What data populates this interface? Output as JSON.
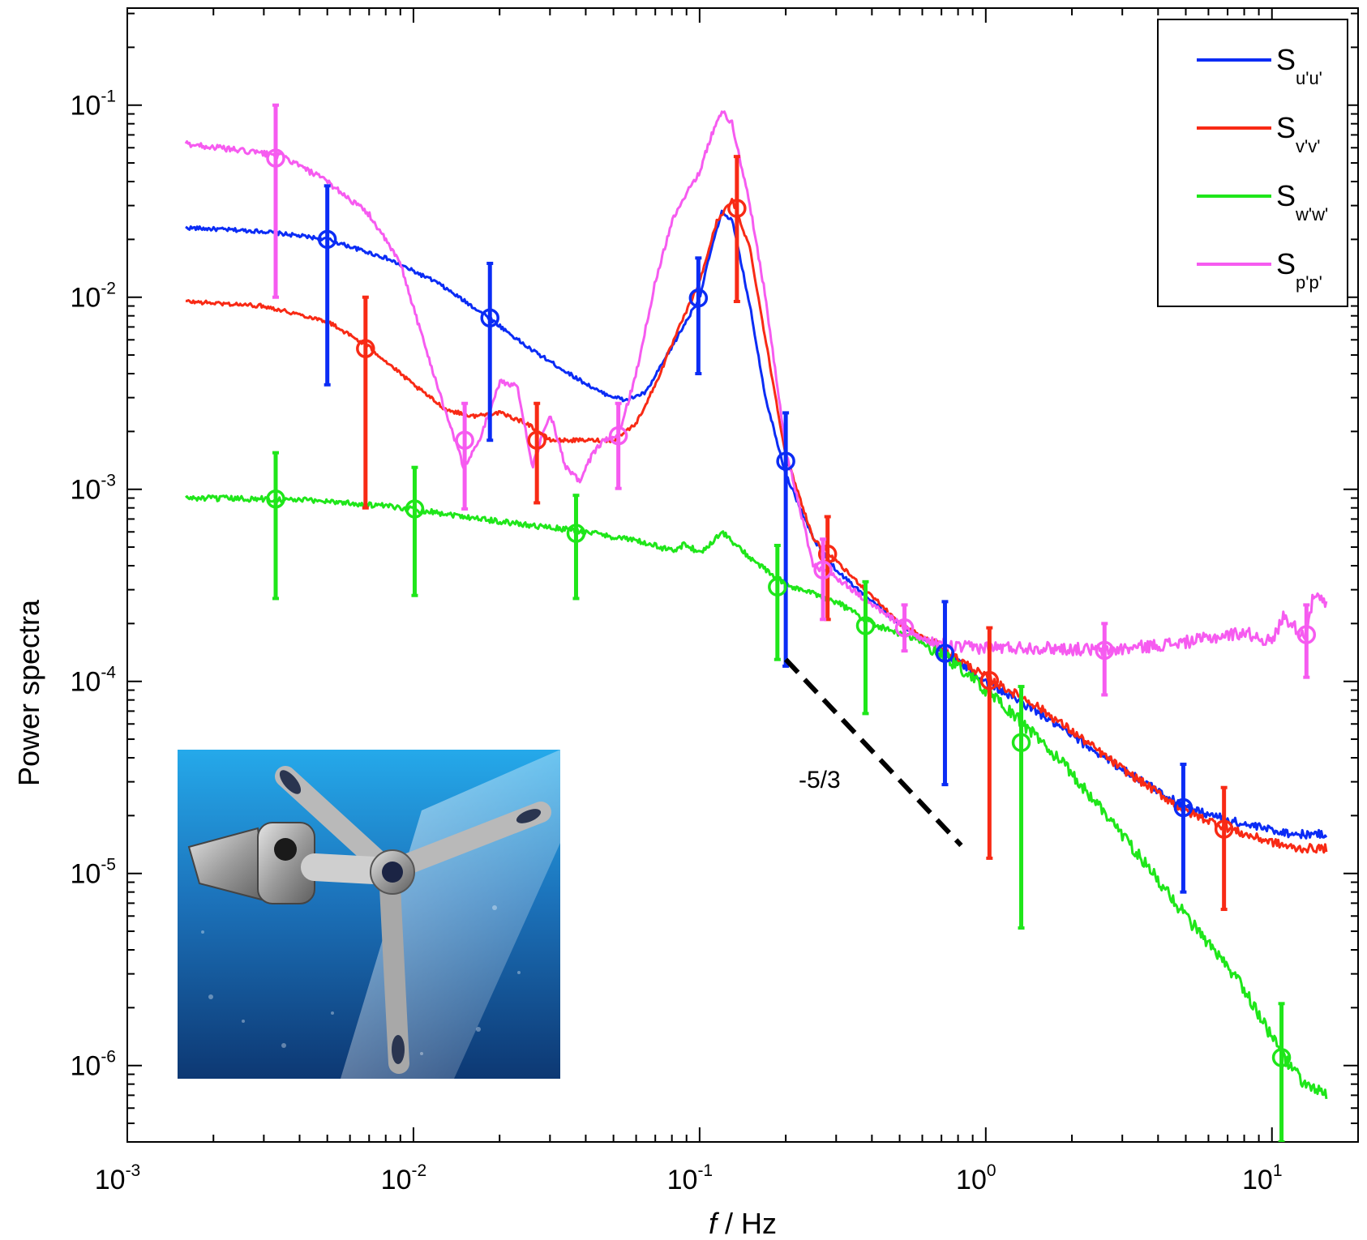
{
  "chart_data": {
    "type": "line",
    "xlabel_italic": "f",
    "xlabel_rest": " / Hz",
    "ylabel": "Power spectra",
    "x_scale": "log",
    "y_scale": "log",
    "xlim": [
      0.001,
      20
    ],
    "ylim": [
      4e-07,
      0.32
    ],
    "x_ticks": [
      {
        "value": 0.001,
        "base": "10",
        "exp": "-3"
      },
      {
        "value": 0.01,
        "base": "10",
        "exp": "-2"
      },
      {
        "value": 0.1,
        "base": "10",
        "exp": "-1"
      },
      {
        "value": 1,
        "base": "10",
        "exp": "0"
      },
      {
        "value": 10,
        "base": "10",
        "exp": "1"
      }
    ],
    "y_ticks": [
      {
        "value": 0.1,
        "base": "10",
        "exp": "-1"
      },
      {
        "value": 0.01,
        "base": "10",
        "exp": "-2"
      },
      {
        "value": 0.001,
        "base": "10",
        "exp": "-3"
      },
      {
        "value": 0.0001,
        "base": "10",
        "exp": "-4"
      },
      {
        "value": 1e-05,
        "base": "10",
        "exp": "-5"
      },
      {
        "value": 1e-06,
        "base": "10",
        "exp": "-6"
      }
    ],
    "legend_position": "top-right",
    "series": [
      {
        "name": "S",
        "sub": "u'u'",
        "color": "#0b2cf5",
        "noise": 0.02,
        "x": [
          0.0016,
          0.003,
          0.005,
          0.008,
          0.012,
          0.018,
          0.025,
          0.035,
          0.045,
          0.055,
          0.065,
          0.08,
          0.1,
          0.11,
          0.12,
          0.13,
          0.15,
          0.17,
          0.2,
          0.25,
          0.3,
          0.4,
          0.5,
          0.7,
          1.0,
          1.5,
          2,
          3,
          5,
          8,
          12,
          15.5
        ],
        "y": [
          0.023,
          0.022,
          0.02,
          0.016,
          0.012,
          0.008,
          0.0055,
          0.004,
          0.0032,
          0.0029,
          0.0032,
          0.0055,
          0.01,
          0.018,
          0.028,
          0.025,
          0.009,
          0.003,
          0.0012,
          0.00055,
          0.00038,
          0.00026,
          0.0002,
          0.000145,
          0.0001,
          7e-05,
          5.2e-05,
          3.5e-05,
          2.2e-05,
          1.8e-05,
          1.6e-05,
          1.6e-05
        ]
      },
      {
        "name": "S",
        "sub": "v'v'",
        "color": "#f82a15",
        "noise": 0.02,
        "x": [
          0.0016,
          0.003,
          0.005,
          0.007,
          0.01,
          0.013,
          0.016,
          0.02,
          0.025,
          0.03,
          0.04,
          0.05,
          0.06,
          0.07,
          0.085,
          0.1,
          0.115,
          0.13,
          0.15,
          0.17,
          0.2,
          0.25,
          0.3,
          0.4,
          0.5,
          0.7,
          1.0,
          1.5,
          2,
          3,
          5,
          8,
          12,
          15.5
        ],
        "y": [
          0.0095,
          0.009,
          0.0075,
          0.0055,
          0.0035,
          0.0026,
          0.0024,
          0.0025,
          0.0022,
          0.0018,
          0.0018,
          0.0018,
          0.0022,
          0.0035,
          0.007,
          0.012,
          0.025,
          0.032,
          0.018,
          0.006,
          0.0015,
          0.00055,
          0.00042,
          0.00028,
          0.0002,
          0.00015,
          0.000105,
          7.5e-05,
          5.5e-05,
          3.5e-05,
          2.1e-05,
          1.6e-05,
          1.35e-05,
          1.35e-05
        ]
      },
      {
        "name": "S",
        "sub": "w'w'",
        "color": "#1fe61a",
        "noise": 0.03,
        "x": [
          0.0016,
          0.003,
          0.005,
          0.01,
          0.02,
          0.04,
          0.06,
          0.08,
          0.09,
          0.1,
          0.11,
          0.12,
          0.14,
          0.17,
          0.2,
          0.3,
          0.4,
          0.6,
          0.8,
          1.0,
          1.5,
          2,
          3,
          5,
          8,
          11,
          13,
          15.5
        ],
        "y": [
          0.0009,
          0.00089,
          0.00087,
          0.00079,
          0.00068,
          0.0006,
          0.00054,
          0.00048,
          0.00052,
          0.00046,
          0.00053,
          0.0006,
          0.00048,
          0.00038,
          0.00032,
          0.00026,
          0.0002,
          0.00016,
          0.00012,
          9e-05,
          5.2e-05,
          3.3e-05,
          1.6e-05,
          6e-06,
          2.5e-06,
          1.1e-06,
          8e-07,
          7e-07
        ]
      },
      {
        "name": "S",
        "sub": "p'p'",
        "color": "#f65bf0",
        "noise": 0.03,
        "x": [
          0.0016,
          0.003,
          0.0035,
          0.005,
          0.007,
          0.009,
          0.011,
          0.013,
          0.015,
          0.017,
          0.02,
          0.023,
          0.026,
          0.03,
          0.034,
          0.038,
          0.042,
          0.046,
          0.052,
          0.06,
          0.07,
          0.08,
          0.09,
          0.1,
          0.11,
          0.12,
          0.13,
          0.15,
          0.17,
          0.2,
          0.25,
          0.3,
          0.4,
          0.5,
          0.6,
          0.8,
          1.0,
          1.5,
          2.7,
          5,
          8,
          10,
          11,
          13,
          14,
          15.5
        ],
        "y": [
          0.063,
          0.056,
          0.054,
          0.04,
          0.027,
          0.015,
          0.0055,
          0.0025,
          0.0013,
          0.0018,
          0.0036,
          0.0035,
          0.0013,
          0.0025,
          0.0013,
          0.0011,
          0.0015,
          0.0018,
          0.0019,
          0.004,
          0.012,
          0.025,
          0.035,
          0.045,
          0.07,
          0.093,
          0.08,
          0.03,
          0.01,
          0.0016,
          0.0004,
          0.00035,
          0.00025,
          0.0002,
          0.000165,
          0.00015,
          0.00015,
          0.00015,
          0.000145,
          0.00016,
          0.00018,
          0.00016,
          0.00022,
          0.00017,
          0.00028,
          0.00025
        ]
      }
    ],
    "error_bars": [
      {
        "series": 0,
        "points": [
          {
            "x": 0.005,
            "y": 0.02,
            "lo": 0.0035,
            "hi": 0.038
          },
          {
            "x": 0.0185,
            "y": 0.0078,
            "lo": 0.0018,
            "hi": 0.015
          },
          {
            "x": 0.099,
            "y": 0.0099,
            "lo": 0.004,
            "hi": 0.016
          },
          {
            "x": 0.2,
            "y": 0.0014,
            "lo": 0.00012,
            "hi": 0.0025
          },
          {
            "x": 0.72,
            "y": 0.00014,
            "lo": 2.9e-05,
            "hi": 0.00026
          },
          {
            "x": 4.9,
            "y": 2.2e-05,
            "lo": 8e-06,
            "hi": 3.7e-05
          }
        ]
      },
      {
        "series": 1,
        "points": [
          {
            "x": 0.0068,
            "y": 0.0054,
            "lo": 0.0008,
            "hi": 0.01
          },
          {
            "x": 0.027,
            "y": 0.0018,
            "lo": 0.00085,
            "hi": 0.0028
          },
          {
            "x": 0.135,
            "y": 0.029,
            "lo": 0.0095,
            "hi": 0.054
          },
          {
            "x": 0.28,
            "y": 0.00046,
            "lo": 0.00021,
            "hi": 0.00072
          },
          {
            "x": 1.03,
            "y": 0.000101,
            "lo": 1.2e-05,
            "hi": 0.00019
          },
          {
            "x": 6.8,
            "y": 1.7e-05,
            "lo": 6.5e-06,
            "hi": 2.8e-05
          }
        ]
      },
      {
        "series": 2,
        "points": [
          {
            "x": 0.0033,
            "y": 0.00089,
            "lo": 0.00027,
            "hi": 0.00155
          },
          {
            "x": 0.0101,
            "y": 0.00079,
            "lo": 0.00028,
            "hi": 0.0013
          },
          {
            "x": 0.037,
            "y": 0.00059,
            "lo": 0.00027,
            "hi": 0.00093
          },
          {
            "x": 0.187,
            "y": 0.00031,
            "lo": 0.00013,
            "hi": 0.00051
          },
          {
            "x": 0.38,
            "y": 0.000195,
            "lo": 6.8e-05,
            "hi": 0.00033
          },
          {
            "x": 1.33,
            "y": 4.8e-05,
            "lo": 5.2e-06,
            "hi": 9.4e-05
          },
          {
            "x": 10.8,
            "y": 1.1e-06,
            "lo": 4e-07,
            "hi": 2.1e-06
          }
        ]
      },
      {
        "series": 3,
        "points": [
          {
            "x": 0.0033,
            "y": 0.053,
            "lo": 0.01,
            "hi": 0.1
          },
          {
            "x": 0.0151,
            "y": 0.0018,
            "lo": 0.00079,
            "hi": 0.0028
          },
          {
            "x": 0.052,
            "y": 0.0019,
            "lo": 0.00101,
            "hi": 0.0028
          },
          {
            "x": 0.27,
            "y": 0.00038,
            "lo": 0.00021,
            "hi": 0.00055
          },
          {
            "x": 0.52,
            "y": 0.00019,
            "lo": 0.000144,
            "hi": 0.00025
          },
          {
            "x": 2.6,
            "y": 0.000145,
            "lo": 8.5e-05,
            "hi": 0.0002
          },
          {
            "x": 13.2,
            "y": 0.000175,
            "lo": 0.000105,
            "hi": 0.00025
          }
        ]
      }
    ],
    "reference_line": {
      "label": "-5/3",
      "color": "#000000",
      "x": [
        0.2,
        0.82
      ],
      "y": [
        0.00013,
        1.4e-05
      ]
    },
    "inset_image": "photograph of a stainless-steel acoustic Doppler velocimeter probe with three angled arms against a blue water background"
  }
}
